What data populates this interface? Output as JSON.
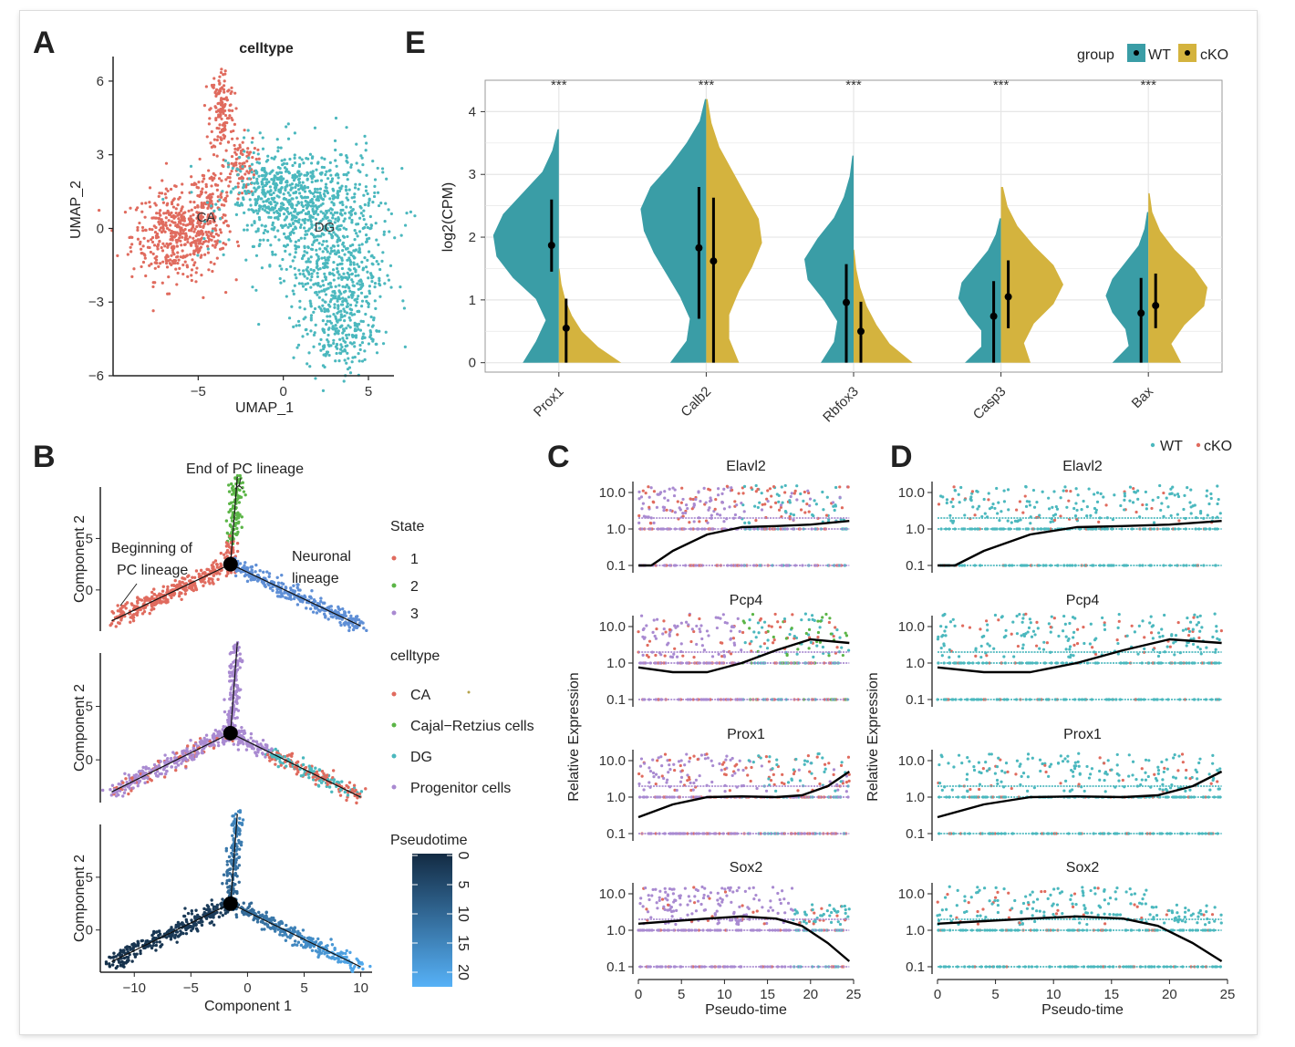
{
  "colors": {
    "ca": "#E06B5E",
    "dg": "#4BB8BE",
    "green": "#5BB547",
    "purple": "#A98AD1",
    "wt": "#3A9DA6",
    "cko": "#D4B33E",
    "pseudo_dark": "#132B43",
    "pseudo_light": "#56B1F7"
  },
  "chart_data": [
    {
      "panel": "A",
      "type": "scatter",
      "title": "celltype",
      "xlabel": "UMAP_1",
      "ylabel": "UMAP_2",
      "xticks": [
        -5,
        0,
        5
      ],
      "yticks": [
        6,
        3,
        0,
        -3,
        -6
      ],
      "xlim": [
        -10,
        6.5
      ],
      "ylim": [
        -6,
        7
      ],
      "clusters": [
        {
          "label": "CA",
          "x": -4.8,
          "y": 0.5
        },
        {
          "label": "DG",
          "x": 2.5,
          "y": 0.1
        }
      ]
    },
    {
      "panel": "E",
      "type": "violin",
      "ylabel": "log2(CPM)",
      "ylim": [
        -0.15,
        4.5
      ],
      "yticks": [
        0,
        1,
        2,
        3,
        4
      ],
      "categories": [
        "Prox1",
        "Calb2",
        "Rbfox3",
        "Casp3",
        "Bax"
      ],
      "significance": [
        "***",
        "***",
        "***",
        "***",
        "***"
      ],
      "legend_title": "group",
      "series": [
        {
          "name": "WT",
          "mean": [
            1.87,
            1.83,
            0.96,
            0.74,
            0.79
          ],
          "lower": [
            1.45,
            0.7,
            0.0,
            0.0,
            0.0
          ],
          "upper": [
            2.6,
            2.8,
            1.57,
            1.3,
            1.35
          ],
          "max": [
            3.72,
            4.2,
            3.3,
            2.3,
            2.4
          ]
        },
        {
          "name": "cKO",
          "mean": [
            0.55,
            1.62,
            0.5,
            1.05,
            0.91
          ],
          "lower": [
            0.0,
            0.0,
            0.0,
            0.55,
            0.55
          ],
          "upper": [
            1.02,
            2.63,
            0.97,
            1.63,
            1.42
          ],
          "max": [
            1.5,
            4.2,
            1.8,
            2.8,
            2.7
          ]
        }
      ]
    },
    {
      "panel": "B",
      "type": "scatter",
      "xlabel": "Component 1",
      "ylabel": "Component 2",
      "xticks": [
        -10,
        -5,
        0,
        5,
        10
      ],
      "yticks": [
        5,
        0
      ],
      "annotations": [
        "End of PC lineage",
        "Beginning of",
        "PC  lineage",
        "Neuronal",
        "lineage"
      ],
      "legends": [
        {
          "title": "State",
          "items": [
            "1",
            "2",
            "3"
          ]
        },
        {
          "title": "celltype",
          "items": [
            "CA",
            "Cajal−Retzius cells",
            "DG",
            "Progenitor cells"
          ]
        },
        {
          "title": "Pseudotime",
          "ticks": [
            "0",
            "5",
            "10",
            "15",
            "20"
          ]
        }
      ]
    },
    {
      "panel": "C",
      "type": "scatter",
      "xlabel": "Pseudo-time",
      "ylabel": "Relative Expression",
      "xticks": [
        0,
        5,
        10,
        15,
        20,
        25
      ],
      "yticks": [
        "10.0",
        "1.0",
        "0.1"
      ],
      "genes": [
        "Elavl2",
        "Pcp4",
        "Prox1",
        "Sox2"
      ]
    },
    {
      "panel": "D",
      "type": "scatter",
      "xlabel": "Pseudo-time",
      "ylabel": "Relative Expression",
      "xticks": [
        0,
        5,
        10,
        15,
        20,
        25
      ],
      "yticks": [
        "10.0",
        "1.0",
        "0.1"
      ],
      "genes": [
        "Elavl2",
        "Pcp4",
        "Prox1",
        "Sox2"
      ],
      "legend_items": [
        "WT",
        "cKO"
      ]
    }
  ],
  "panel_letters": [
    "A",
    "E",
    "B",
    "C",
    "D"
  ]
}
